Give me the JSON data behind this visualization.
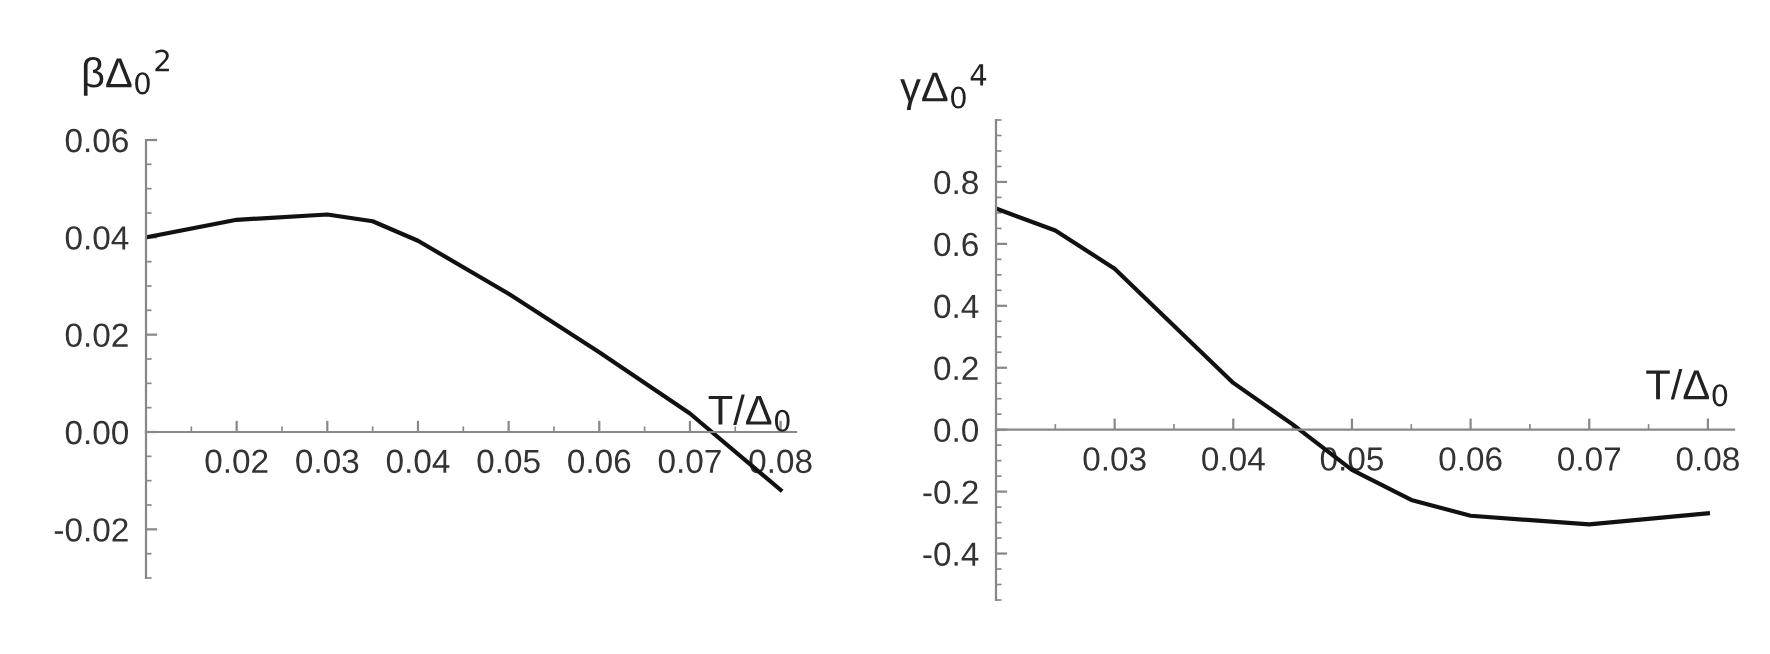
{
  "chart_data": [
    {
      "type": "line",
      "ylabel": "βΔ$_{0}$$^{2}$",
      "xlabel": "T/Δ$_{0}$",
      "color": "#111111",
      "grid": false,
      "legend": false,
      "marker": "none",
      "line_style": "solid",
      "x": [
        0.01,
        0.02,
        0.03,
        0.035,
        0.04,
        0.05,
        0.06,
        0.07,
        0.08
      ],
      "values": [
        0.04,
        0.0436,
        0.0447,
        0.0433,
        0.0393,
        0.0284,
        0.0164,
        0.0038,
        -0.0119
      ],
      "xlim": [
        0.01,
        0.0817
      ],
      "ylim": [
        -0.03,
        0.06
      ],
      "xticks": [
        0.02,
        0.03,
        0.04,
        0.05,
        0.06,
        0.07,
        0.08
      ],
      "yticks": [
        {
          "value": -0.02,
          "label": "-0.02"
        },
        {
          "value": 0.0,
          "label": "0.00"
        },
        {
          "value": 0.02,
          "label": "0.02"
        },
        {
          "value": 0.04,
          "label": "0.04"
        },
        {
          "value": 0.06,
          "label": "0.06"
        }
      ]
    },
    {
      "type": "line",
      "ylabel": "γΔ$_{0}$$^{4}$",
      "xlabel": "T/Δ$_{0}$",
      "color": "#111111",
      "grid": false,
      "legend": false,
      "marker": "none",
      "line_style": "solid",
      "x": [
        0.02,
        0.025,
        0.03,
        0.04,
        0.045,
        0.05,
        0.055,
        0.06,
        0.07,
        0.08
      ],
      "values": [
        0.714,
        0.643,
        0.52,
        0.151,
        0.017,
        -0.13,
        -0.227,
        -0.278,
        -0.306,
        -0.27
      ],
      "xlim": [
        0.02,
        0.0822
      ],
      "ylim": [
        -0.55,
        1.0
      ],
      "xticks": [
        0.03,
        0.04,
        0.05,
        0.06,
        0.07,
        0.08
      ],
      "yticks": [
        {
          "value": -0.4,
          "label": "-0.4"
        },
        {
          "value": -0.2,
          "label": "-0.2"
        },
        {
          "value": 0.0,
          "label": "0.0"
        },
        {
          "value": 0.2,
          "label": "0.2"
        },
        {
          "value": 0.4,
          "label": "0.4"
        },
        {
          "value": 0.6,
          "label": "0.6"
        },
        {
          "value": 0.8,
          "label": "0.8"
        }
      ]
    }
  ]
}
